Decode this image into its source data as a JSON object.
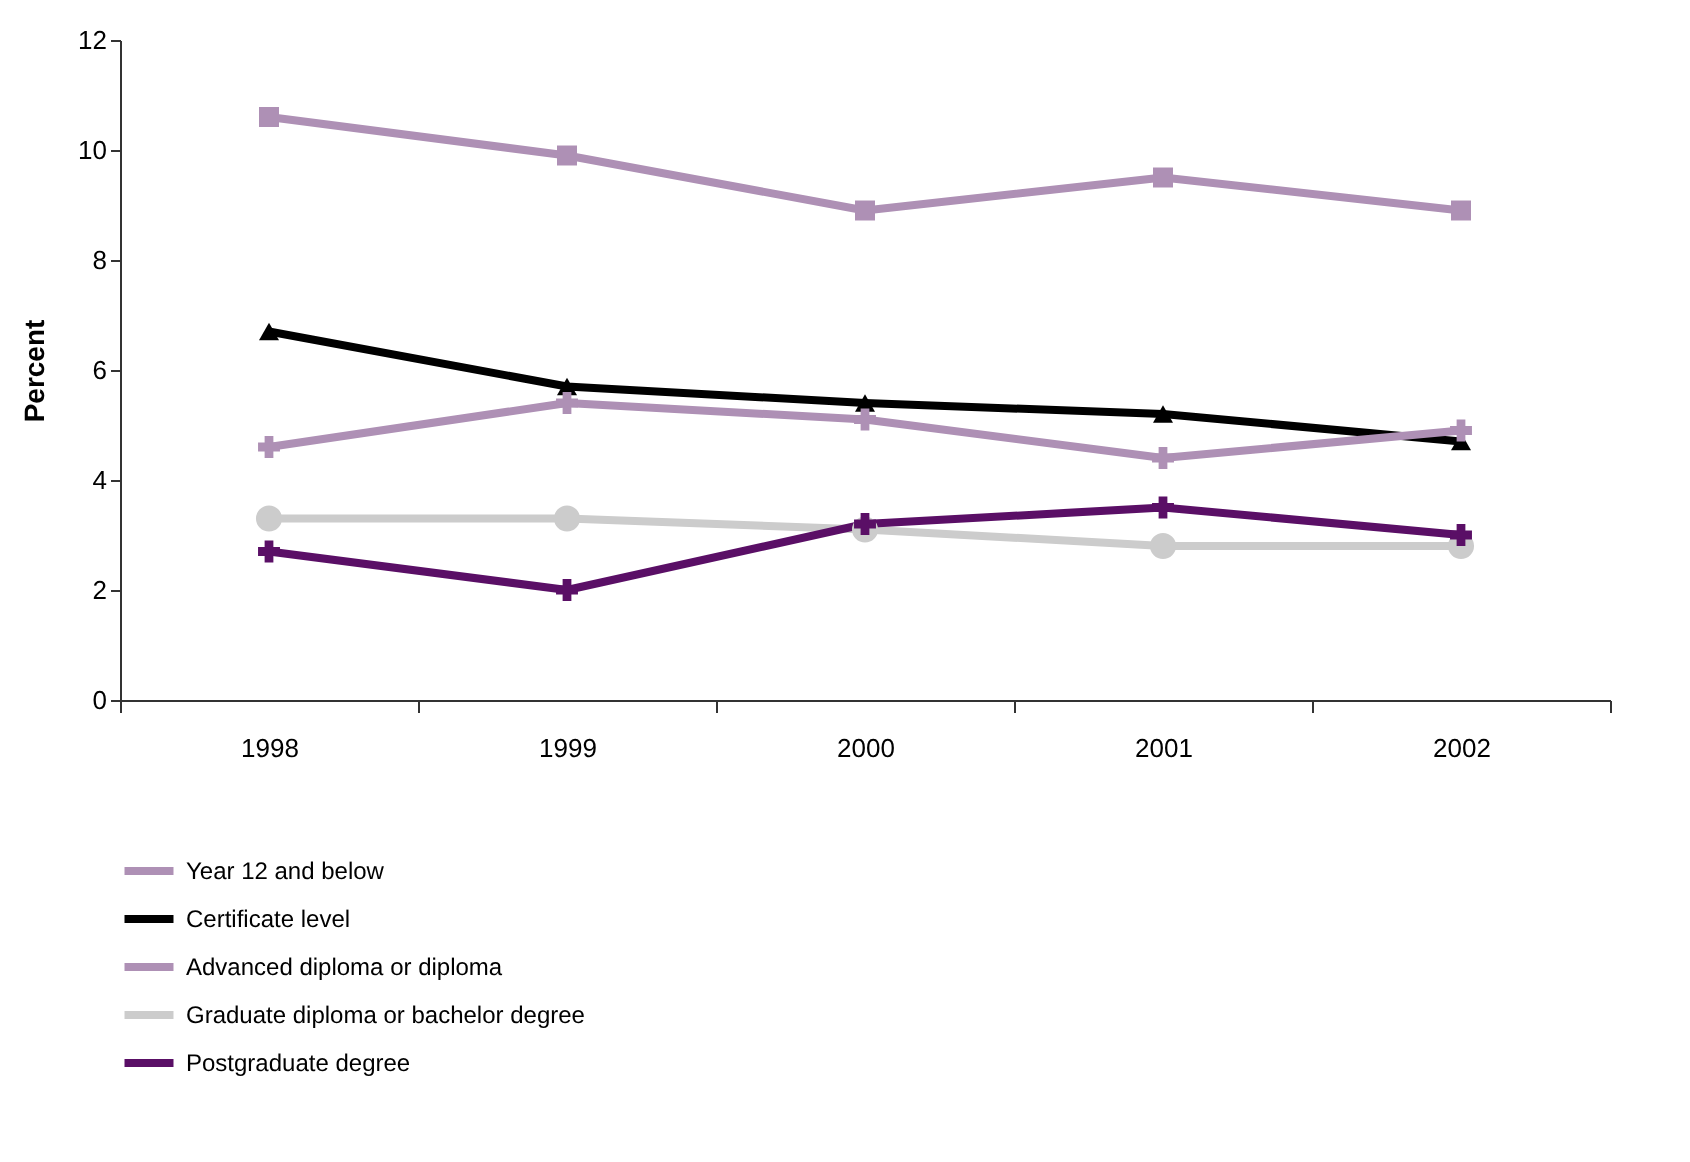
{
  "chart_data": {
    "type": "line",
    "ylabel": "Percent",
    "categories": [
      "1998",
      "1999",
      "2000",
      "2001",
      "2002"
    ],
    "ylim": [
      0,
      12
    ],
    "yticks": [
      0,
      2,
      4,
      6,
      8,
      10,
      12
    ],
    "grid": false,
    "legend": "bottom left",
    "line_style": "solid",
    "series": [
      {
        "name": "Year 12 and below",
        "color": "#ae90b5",
        "marker": "square",
        "values": [
          10.6,
          9.9,
          8.9,
          9.5,
          8.9
        ]
      },
      {
        "name": "Certificate level",
        "color": "#000000",
        "marker": "triangle",
        "values": [
          6.7,
          5.7,
          5.4,
          5.2,
          4.7
        ]
      },
      {
        "name": "Advanced diploma or diploma",
        "color": "#ae90b5",
        "marker": "cross",
        "values": [
          4.6,
          5.4,
          5.1,
          4.4,
          4.9
        ]
      },
      {
        "name": "Graduate diploma or bachelor degree",
        "color": "#cccccc",
        "marker": "circle",
        "values": [
          3.3,
          3.3,
          3.1,
          2.8,
          2.8
        ]
      },
      {
        "name": "Postgraduate degree",
        "color": "#5a0f66",
        "marker": "cross",
        "values": [
          2.7,
          2.0,
          3.2,
          3.5,
          3.0
        ]
      }
    ]
  }
}
